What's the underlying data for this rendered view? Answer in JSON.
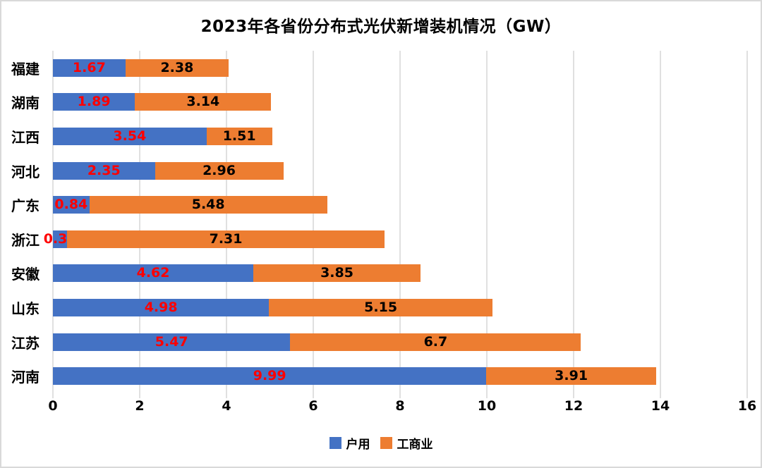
{
  "chart_data": {
    "type": "bar",
    "orientation": "horizontal",
    "stacked": true,
    "title": "2023年各省份分布式光伏新增装机情况（GW）",
    "categories": [
      "福建",
      "湖南",
      "江西",
      "河北",
      "广东",
      "浙江",
      "安徽",
      "山东",
      "江苏",
      "河南"
    ],
    "series": [
      {
        "name": "户用",
        "color": "#4472C4",
        "label_color": "#FF0000",
        "values": [
          1.67,
          1.89,
          3.54,
          2.35,
          0.84,
          0.33,
          4.62,
          4.98,
          5.47,
          9.99
        ]
      },
      {
        "name": "工商业",
        "color": "#ED7D31",
        "label_color": "#000000",
        "values": [
          2.38,
          3.14,
          1.51,
          2.96,
          5.48,
          7.31,
          3.85,
          5.15,
          6.7,
          3.91
        ]
      }
    ],
    "x_axis": {
      "min": 0,
      "max": 16,
      "step": 2,
      "tick_labels": [
        "0",
        "2",
        "4",
        "6",
        "8",
        "10",
        "12",
        "14",
        "16"
      ]
    },
    "grid": true,
    "legend_position": "bottom",
    "grid_color": "#e0e0e0",
    "background": "#ffffff"
  }
}
